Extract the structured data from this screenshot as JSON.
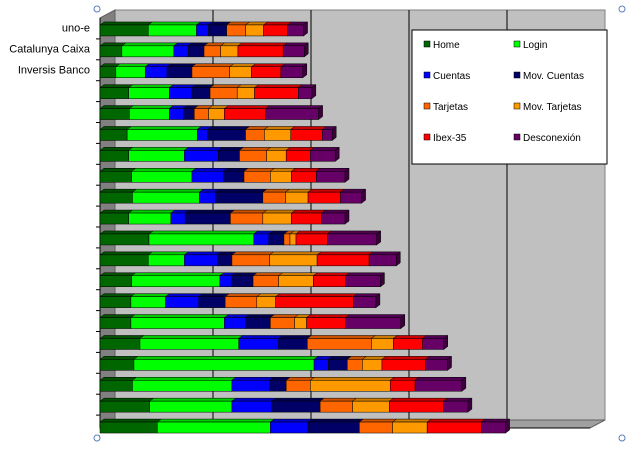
{
  "chart_data": {
    "type": "bar",
    "orientation": "horizontal",
    "stacked": true,
    "style": "3d",
    "categories": [
      "uno-e",
      "Catalunya Caixa",
      "Inversis Banco",
      "",
      "",
      "",
      "",
      "",
      "",
      "",
      "",
      "",
      "",
      "",
      "",
      "",
      "",
      "",
      "",
      ""
    ],
    "series": [
      {
        "name": "Home",
        "color": "#006600",
        "values": [
          6.4,
          2.9,
          2.1,
          3.8,
          3.9,
          3.6,
          3.8,
          4.2,
          4.3,
          3.8,
          6.5,
          6.4,
          4.2,
          4.1,
          4.1,
          5.3,
          4.5,
          4.3,
          6.6,
          7.6
        ]
      },
      {
        "name": "Login",
        "color": "#00ff00",
        "values": [
          6.4,
          6.9,
          3.9,
          5.4,
          5.3,
          9.3,
          7.4,
          8.0,
          8.9,
          5.6,
          13.9,
          4.8,
          11.7,
          4.6,
          12.4,
          13.1,
          23.9,
          13.2,
          10.9,
          15.0
        ]
      },
      {
        "name": "Cuentas",
        "color": "#0000ff",
        "values": [
          1.6,
          1.9,
          2.9,
          3.0,
          1.9,
          1.4,
          4.5,
          4.2,
          2.1,
          1.9,
          2.0,
          4.4,
          1.6,
          4.4,
          2.8,
          5.3,
          1.9,
          5.0,
          5.3,
          5.0
        ]
      },
      {
        "name": "Mov. Cuentas",
        "color": "#000066",
        "values": [
          2.4,
          2.1,
          3.3,
          2.4,
          1.4,
          5.0,
          2.8,
          2.7,
          6.3,
          6.0,
          2.0,
          1.9,
          2.8,
          3.5,
          3.3,
          3.8,
          2.5,
          2.2,
          6.4,
          6.8
        ]
      },
      {
        "name": "Tarjetas",
        "color": "#ff6600",
        "values": [
          2.5,
          2.2,
          5.0,
          3.6,
          1.9,
          2.5,
          3.6,
          3.5,
          3.0,
          4.3,
          0.8,
          5.0,
          3.4,
          4.2,
          3.2,
          8.5,
          2.0,
          3.2,
          4.3,
          4.4
        ]
      },
      {
        "name": "Mov. Tarjetas",
        "color": "#ff9900",
        "values": [
          2.4,
          2.3,
          2.9,
          2.3,
          2.1,
          3.5,
          2.6,
          2.8,
          3.0,
          3.8,
          0.8,
          6.3,
          4.6,
          2.5,
          1.6,
          2.9,
          2.6,
          10.6,
          4.9,
          4.6
        ]
      },
      {
        "name": "Ibex-35",
        "color": "#ff0000",
        "values": [
          3.2,
          6.0,
          3.9,
          5.8,
          5.5,
          4.2,
          3.2,
          3.3,
          4.3,
          4.0,
          4.2,
          6.9,
          4.3,
          10.3,
          5.2,
          3.9,
          5.8,
          3.3,
          7.2,
          7.2
        ]
      },
      {
        "name": "Desconexión",
        "color": "#660066",
        "values": [
          2.1,
          2.8,
          2.9,
          1.8,
          7.0,
          1.3,
          3.3,
          3.8,
          2.8,
          3.1,
          6.5,
          3.6,
          4.6,
          3.0,
          7.3,
          2.8,
          2.9,
          6.2,
          3.2,
          3.2
        ]
      }
    ],
    "xlim": [
      0,
      65
    ],
    "grid": "vertical",
    "legend": {
      "position": "top-right",
      "columns": 2
    }
  }
}
